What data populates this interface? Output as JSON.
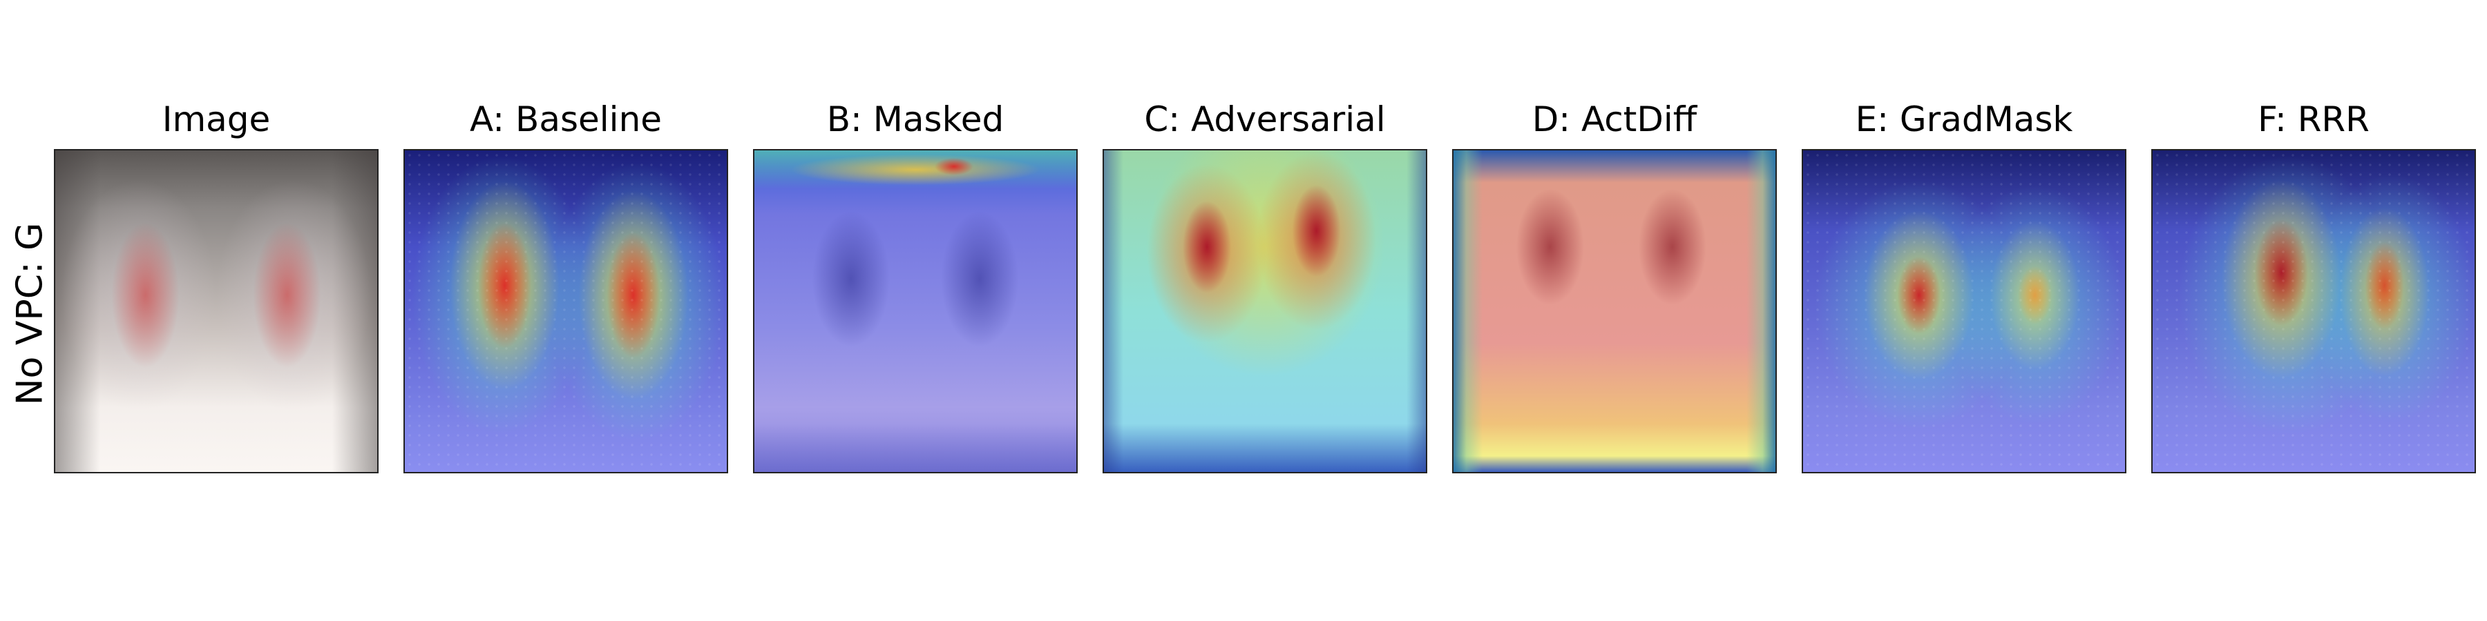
{
  "row_label": "No VPC: G",
  "panels": [
    {
      "title": "Image"
    },
    {
      "title": "A: Baseline"
    },
    {
      "title": "B: Masked"
    },
    {
      "title": "C: Adversarial"
    },
    {
      "title": "D: ActDiff"
    },
    {
      "title": "E: GradMask"
    },
    {
      "title": "F: RRR"
    }
  ]
}
